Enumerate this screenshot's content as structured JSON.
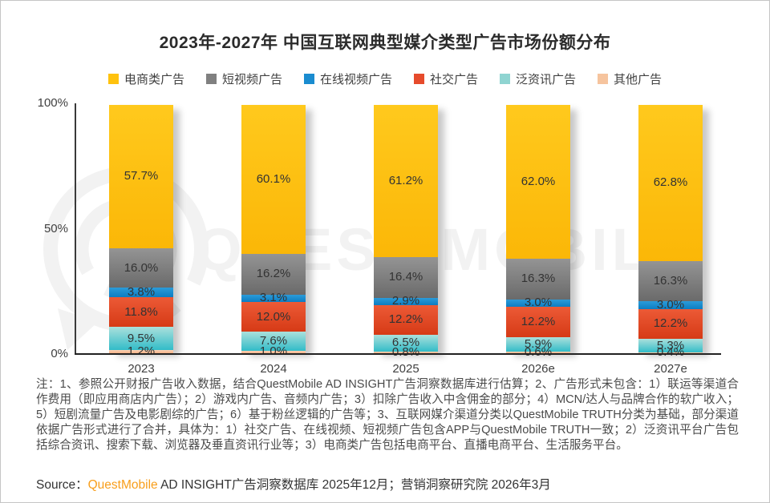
{
  "title": "2023年-2027年 中国互联网典型媒介类型广告市场份额分布",
  "watermark": {
    "text": "QUEST MOBILE"
  },
  "chart_data": {
    "type": "bar",
    "stacked": true,
    "title": "2023年-2027年 中国互联网典型媒介类型广告市场份额分布",
    "categories": [
      "2023",
      "2024",
      "2025",
      "2026e",
      "2027e"
    ],
    "series": [
      {
        "name": "电商类广告",
        "color": "#FFC20E",
        "color_top": "#FFC91D",
        "color_bottom": "#FBB707",
        "values": [
          57.7,
          60.1,
          61.2,
          62.0,
          62.8
        ]
      },
      {
        "name": "短视频广告",
        "color": "#808080",
        "color_top": "#949494",
        "color_bottom": "#6A6A6A",
        "values": [
          16.0,
          16.2,
          16.4,
          16.3,
          16.3
        ]
      },
      {
        "name": "在线视频广告",
        "color": "#1A8CD0",
        "color_top": "#2B9BD9",
        "color_bottom": "#0C7DC2",
        "values": [
          3.8,
          3.1,
          2.9,
          3.0,
          3.0
        ]
      },
      {
        "name": "社交广告",
        "color": "#E64B2C",
        "color_top": "#EC5A36",
        "color_bottom": "#D63A16",
        "values": [
          11.8,
          12.0,
          12.2,
          12.2,
          12.2
        ]
      },
      {
        "name": "泛资讯广告",
        "color": "#8FD4D1",
        "color_top": "#ABE0DC",
        "color_bottom": "#32BCC8",
        "values": [
          9.5,
          7.6,
          6.5,
          5.9,
          5.3
        ]
      },
      {
        "name": "其他广告",
        "color": "#F6C49E",
        "color_top": "#FBD2B5",
        "color_bottom": "#F3B288",
        "values": [
          1.2,
          1.0,
          0.8,
          0.6,
          0.4
        ]
      }
    ],
    "value_suffix": "%",
    "ylim": [
      0,
      100
    ],
    "ytick_labels": [
      "100%",
      "50%",
      "0%"
    ],
    "legend_position": "top",
    "grid": false
  },
  "note": "注：1、参照公开财报广告收入数据，结合QuestMobile AD INSIGHT广告洞察数据库进行估算；2、广告形式未包含：1）联运等渠道合作费用（即应用商店内广告）；2）游戏内广告、音频内广告；3）扣除广告收入中含佣金的部分；4）MCN/达人与品牌合作的软广收入；5）短剧流量广告及电影剧综的广告；6）基于粉丝逻辑的广告等；3、互联网媒介渠道分类以QuestMobile TRUTH分类为基础，部分渠道依据广告形式进行了合并，具体为：1）社交广告、在线视频、短视频广告包含APP与QuestMobile TRUTH一致；2）泛资讯平台广告包括综合资讯、搜索下载、浏览器及垂直资讯行业等；3）电商类广告包括电商平台、直播电商平台、生活服务平台。",
  "source": {
    "prefix": "Source：",
    "brand": "QuestMobile",
    "rest": " AD INSIGHT广告洞察数据库 2025年12月；营销洞察研究院 2026年3月"
  }
}
